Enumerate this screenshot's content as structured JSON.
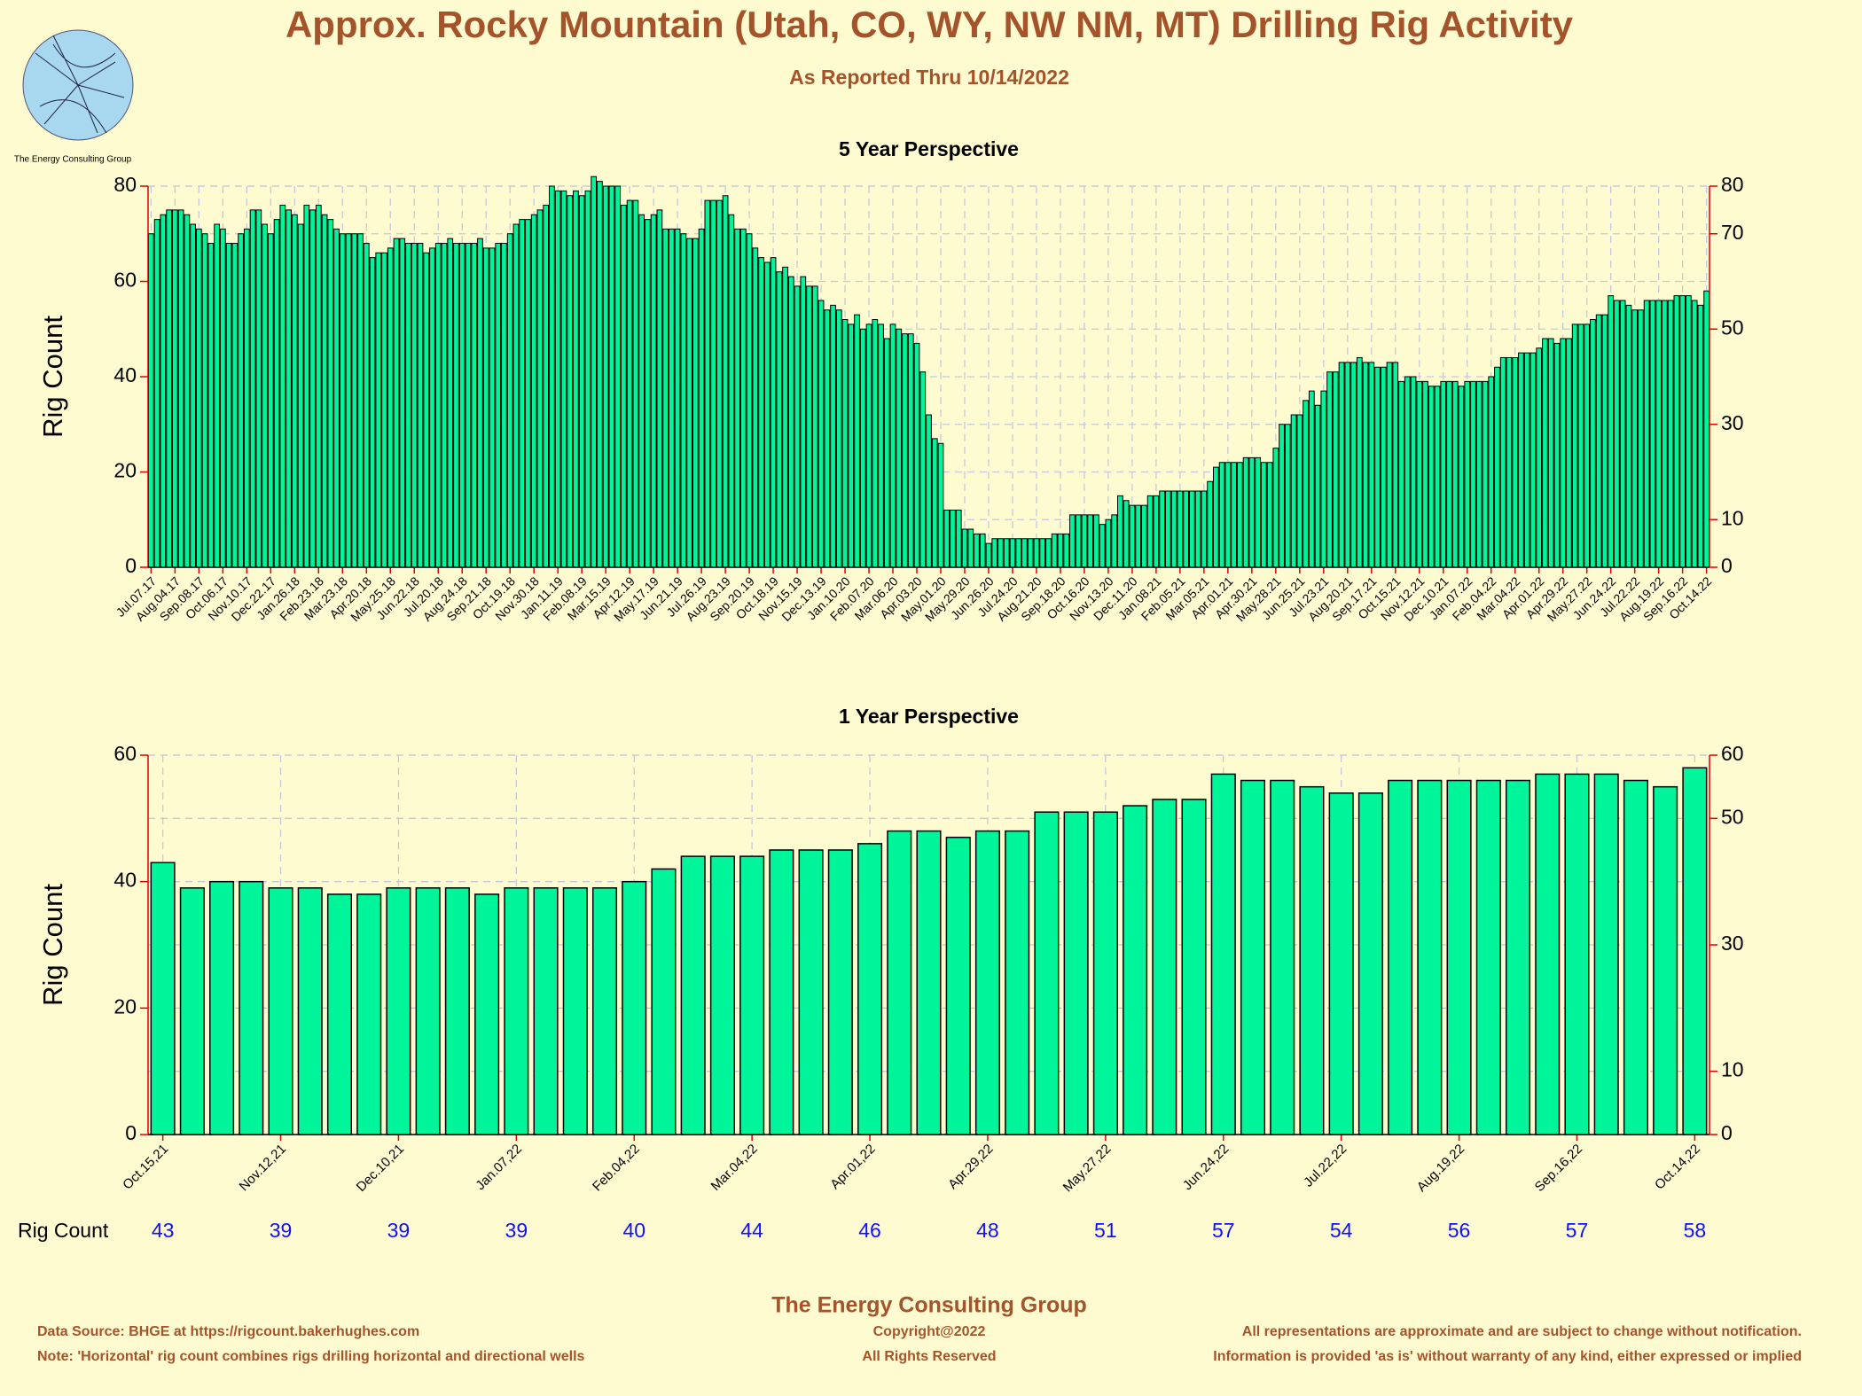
{
  "header": {
    "title": "Approx. Rocky Mountain (Utah, CO, WY, NW NM, MT) Drilling Rig Activity",
    "subtitle": "As Reported Thru 10/14/2022",
    "logo_text": "The Energy Consulting Group"
  },
  "chart_data": [
    {
      "type": "bar",
      "title": "5 Year Perspective",
      "ylabel": "Rig Count",
      "color": "#00f59b",
      "grid": true,
      "ylim": [
        0,
        80
      ],
      "yticks": [
        0,
        20,
        40,
        60,
        80
      ],
      "y2lim": [
        0,
        80
      ],
      "y2ticks": [
        0,
        10,
        30,
        50,
        70,
        80
      ],
      "categories": [
        "Jul.07.17",
        null,
        null,
        null,
        "Aug.04.17",
        null,
        null,
        null,
        "Sep.08.17",
        null,
        null,
        null,
        "Oct.06.17",
        null,
        null,
        null,
        "Nov.10.17",
        null,
        null,
        null,
        "Dec.22.17",
        null,
        null,
        null,
        "Jan.26.18",
        null,
        null,
        null,
        "Feb.23.18",
        null,
        null,
        null,
        "Mar.23.18",
        null,
        null,
        null,
        "Apr.20.18",
        null,
        null,
        null,
        "May.25.18",
        null,
        null,
        null,
        "Jun.22.18",
        null,
        null,
        null,
        "Jul.20.18",
        null,
        null,
        null,
        "Aug.24.18",
        null,
        null,
        null,
        "Sep.21.18",
        null,
        null,
        null,
        "Oct.19.18",
        null,
        null,
        null,
        "Nov.30.18",
        null,
        null,
        null,
        "Jan.11.19",
        null,
        null,
        null,
        "Feb.08.19",
        null,
        null,
        null,
        "Mar.15.19",
        null,
        null,
        null,
        "Apr.12.19",
        null,
        null,
        null,
        "May.17.19",
        null,
        null,
        null,
        "Jun.21.19",
        null,
        null,
        null,
        "Jul.26.19",
        null,
        null,
        null,
        "Aug.23.19",
        null,
        null,
        null,
        "Sep.20.19",
        null,
        null,
        null,
        "Oct.18.19",
        null,
        null,
        null,
        "Nov.15.19",
        null,
        null,
        null,
        "Dec.13.19",
        null,
        null,
        null,
        "Jan.10.20",
        null,
        null,
        null,
        "Feb.07.20",
        null,
        null,
        null,
        "Mar.06.20",
        null,
        null,
        null,
        "Apr.03.20",
        null,
        null,
        null,
        "May.01.20",
        null,
        null,
        null,
        "May.29.20",
        null,
        null,
        null,
        "Jun.26.20",
        null,
        null,
        null,
        "Jul.24.20",
        null,
        null,
        null,
        "Aug.21.20",
        null,
        null,
        null,
        "Sep.18.20",
        null,
        null,
        null,
        "Oct.16.20",
        null,
        null,
        null,
        "Nov.13.20",
        null,
        null,
        null,
        "Dec.11.20",
        null,
        null,
        null,
        "Jan.08.21",
        null,
        null,
        null,
        "Feb.05.21",
        null,
        null,
        null,
        "Mar.05.21",
        null,
        null,
        null,
        "Apr.01.21",
        null,
        null,
        null,
        "Apr.30.21",
        null,
        null,
        null,
        "May.28.21",
        null,
        null,
        null,
        "Jun.25.21",
        null,
        null,
        null,
        "Jul.23.21",
        null,
        null,
        null,
        "Aug.20.21",
        null,
        null,
        null,
        "Sep.17.21",
        null,
        null,
        null,
        "Oct.15.21",
        null,
        null,
        null,
        "Nov.12.21",
        null,
        null,
        null,
        "Dec.10.21",
        null,
        null,
        null,
        "Jan.07.22",
        null,
        null,
        null,
        "Feb.04.22",
        null,
        null,
        null,
        "Mar.04.22",
        null,
        null,
        null,
        "Apr.01.22",
        null,
        null,
        null,
        "Apr.29.22",
        null,
        null,
        null,
        "May.27.22",
        null,
        null,
        null,
        "Jun.24.22",
        null,
        null,
        null,
        "Jul.22.22",
        null,
        null,
        null,
        "Aug.19.22",
        null,
        null,
        null,
        "Sep.16.22",
        null,
        null,
        null,
        "Oct.14.22"
      ],
      "values": [
        70,
        73,
        74,
        75,
        75,
        75,
        74,
        72,
        71,
        70,
        68,
        72,
        71,
        68,
        68,
        70,
        71,
        75,
        75,
        72,
        70,
        73,
        76,
        75,
        74,
        72,
        76,
        75,
        76,
        74,
        73,
        71,
        70,
        70,
        70,
        70,
        68,
        65,
        66,
        66,
        67,
        69,
        69,
        68,
        68,
        68,
        66,
        67,
        68,
        68,
        69,
        68,
        68,
        68,
        68,
        69,
        67,
        67,
        68,
        68,
        70,
        72,
        73,
        73,
        74,
        75,
        76,
        80,
        79,
        79,
        78,
        79,
        78,
        79,
        82,
        81,
        80,
        80,
        80,
        76,
        77,
        77,
        74,
        73,
        74,
        75,
        71,
        71,
        71,
        70,
        69,
        69,
        71,
        77,
        77,
        77,
        78,
        74,
        71,
        71,
        70,
        67,
        65,
        64,
        65,
        62,
        63,
        61,
        59,
        61,
        59,
        59,
        56,
        54,
        55,
        54,
        52,
        51,
        53,
        50,
        51,
        52,
        51,
        48,
        51,
        50,
        49,
        49,
        47,
        41,
        32,
        27,
        26,
        12,
        12,
        12,
        8,
        8,
        7,
        7,
        5,
        6,
        6,
        6,
        6,
        6,
        6,
        6,
        6,
        6,
        6,
        7,
        7,
        7,
        11,
        11,
        11,
        11,
        11,
        9,
        10,
        11,
        15,
        14,
        13,
        13,
        13,
        15,
        15,
        16,
        16,
        16,
        16,
        16,
        16,
        16,
        16,
        18,
        21,
        22,
        22,
        22,
        22,
        23,
        23,
        23,
        22,
        22,
        25,
        30,
        30,
        32,
        32,
        35,
        37,
        34,
        37,
        41,
        41,
        43,
        43,
        43,
        44,
        43,
        43,
        42,
        42,
        43,
        43,
        39,
        40,
        40,
        39,
        39,
        38,
        38,
        39,
        39,
        39,
        38,
        39,
        39,
        39,
        39,
        40,
        42,
        44,
        44,
        44,
        45,
        45,
        45,
        46,
        48,
        48,
        47,
        48,
        48,
        51,
        51,
        51,
        52,
        53,
        53,
        57,
        56,
        56,
        55,
        54,
        54,
        56,
        56,
        56,
        56,
        56,
        57,
        57,
        57,
        56,
        55,
        58
      ]
    },
    {
      "type": "bar",
      "title": "1 Year Perspective",
      "ylabel": "Rig Count",
      "row_label": "Rig Count",
      "color": "#00f59b",
      "grid": true,
      "ylim": [
        0,
        60
      ],
      "yticks": [
        0,
        20,
        40,
        60
      ],
      "y2lim": [
        0,
        60
      ],
      "y2ticks": [
        0,
        10,
        30,
        50,
        60
      ],
      "categories": [
        "Oct.15,21",
        null,
        null,
        null,
        "Nov.12,21",
        null,
        null,
        null,
        "Dec.10,21",
        null,
        null,
        null,
        "Jan.07,22",
        null,
        null,
        null,
        "Feb.04,22",
        null,
        null,
        null,
        "Mar.04,22",
        null,
        null,
        null,
        "Apr.01,22",
        null,
        null,
        null,
        "Apr.29,22",
        null,
        null,
        null,
        "May.27,22",
        null,
        null,
        null,
        "Jun.24,22",
        null,
        null,
        null,
        "Jul.22,22",
        null,
        null,
        null,
        "Aug.19,22",
        null,
        null,
        null,
        "Sep.16,22",
        null,
        null,
        null,
        "Oct.14,22"
      ],
      "values": [
        43,
        39,
        40,
        40,
        39,
        39,
        38,
        38,
        39,
        39,
        39,
        38,
        39,
        39,
        39,
        39,
        40,
        42,
        44,
        44,
        44,
        45,
        45,
        45,
        46,
        48,
        48,
        47,
        48,
        48,
        51,
        51,
        51,
        52,
        53,
        53,
        57,
        56,
        56,
        55,
        54,
        54,
        56,
        56,
        56,
        56,
        56,
        57,
        57,
        57,
        56,
        55,
        58
      ]
    }
  ],
  "footer": {
    "org": "The Energy Consulting Group",
    "source": "Data Source: BHGE at https://rigcount.bakerhughes.com",
    "note": "Note: 'Horizontal' rig count combines rigs drilling horizontal and directional wells",
    "copyright": "Copyright@2022",
    "rights": "All Rights Reserved",
    "disclaimer1": "All representations are approximate and are subject to change without notification.",
    "disclaimer2": "Information is provided 'as is' without warranty of any kind, either expressed or implied"
  }
}
